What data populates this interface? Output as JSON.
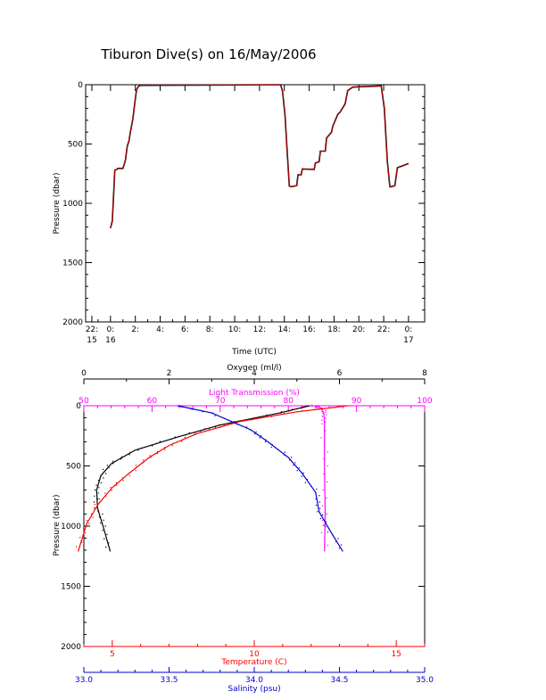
{
  "title": "Tiburon Dive(s) on 16/May/2006",
  "colors": {
    "pressure_trace": "#000000",
    "pressure_overlay": "#ff0000",
    "temperature": "#ff0000",
    "salinity": "#0000cc",
    "oxygen": "#000000",
    "light_transmission": "#ff00ff"
  },
  "chart_data": [
    {
      "type": "line",
      "ylabel": "Pressure (dbar)",
      "xlabel": "Time (UTC)",
      "ylim": [
        2000,
        0
      ],
      "xlim_hours": [
        -2,
        25.3
      ],
      "y_ticks": [
        "0",
        "500",
        "1000",
        "1500",
        "2000"
      ],
      "x_ticks": [
        {
          "hour": -1.5,
          "line1": "22:",
          "line2": "15"
        },
        {
          "hour": 0,
          "line1": "0:",
          "line2": "16"
        },
        {
          "hour": 2,
          "line1": "2:",
          "line2": ""
        },
        {
          "hour": 4,
          "line1": "4:",
          "line2": ""
        },
        {
          "hour": 6,
          "line1": "6:",
          "line2": ""
        },
        {
          "hour": 8,
          "line1": "8:",
          "line2": ""
        },
        {
          "hour": 10,
          "line1": "10:",
          "line2": ""
        },
        {
          "hour": 12,
          "line1": "12:",
          "line2": ""
        },
        {
          "hour": 14,
          "line1": "14:",
          "line2": ""
        },
        {
          "hour": 16,
          "line1": "16:",
          "line2": ""
        },
        {
          "hour": 18,
          "line1": "18:",
          "line2": ""
        },
        {
          "hour": 20,
          "line1": "20:",
          "line2": ""
        },
        {
          "hour": 22,
          "line1": "22:",
          "line2": ""
        },
        {
          "hour": 24,
          "line1": "0:",
          "line2": "17"
        }
      ],
      "series": [
        {
          "x_hours": [
            0.0,
            0.15,
            0.35,
            0.5,
            0.6,
            1.0,
            1.2,
            1.35,
            1.5,
            1.6,
            1.8,
            1.95,
            2.1,
            2.25,
            2.4,
            13.7,
            13.85,
            14.05,
            14.25,
            14.4,
            14.55,
            15.0,
            15.1,
            15.35,
            15.45,
            16.4,
            16.5,
            16.8,
            16.9,
            17.3,
            17.4,
            17.8,
            17.9,
            18.3,
            18.5,
            18.9,
            19.1,
            19.5,
            21.8,
            22.05,
            22.3,
            22.5,
            22.6,
            22.9,
            23.1,
            24.0
          ],
          "y_dbar": [
            1210,
            1150,
            720,
            715,
            705,
            705,
            640,
            520,
            470,
            400,
            290,
            160,
            40,
            15,
            5,
            0,
            50,
            250,
            600,
            855,
            860,
            850,
            760,
            760,
            710,
            715,
            660,
            650,
            560,
            560,
            450,
            400,
            350,
            250,
            230,
            160,
            50,
            20,
            10,
            200,
            650,
            860,
            860,
            850,
            700,
            665
          ]
        }
      ]
    },
    {
      "type": "scatter",
      "ylabel": "Pressure (dbar)",
      "ylim": [
        2000,
        0
      ],
      "y_ticks": [
        "0",
        "500",
        "1000",
        "1500",
        "2000"
      ],
      "axes": {
        "oxygen": {
          "label": "Oxygen (ml/l)",
          "range": [
            0,
            8
          ],
          "ticks": [
            "0",
            "2",
            "4",
            "6",
            "8"
          ]
        },
        "light_transmission": {
          "label": "Light Transmission (%)",
          "range": [
            50,
            100
          ],
          "ticks": [
            "50",
            "60",
            "70",
            "80",
            "90",
            "100"
          ]
        },
        "temperature": {
          "label": "Temperature (C)",
          "range": [
            4.0,
            16.0
          ],
          "ticks": [
            "5",
            "10",
            "15"
          ]
        },
        "salinity": {
          "label": "Salinity (psu)",
          "range": [
            33.0,
            35.0
          ],
          "ticks": [
            "33.0",
            "33.5",
            "34.0",
            "34.5",
            "35.0"
          ]
        }
      },
      "series": [
        {
          "name": "Oxygen",
          "values": [
            [
              5.3,
              0
            ],
            [
              4.6,
              60
            ],
            [
              3.2,
              160
            ],
            [
              2.2,
              260
            ],
            [
              1.2,
              370
            ],
            [
              0.65,
              480
            ],
            [
              0.4,
              580
            ],
            [
              0.3,
              700
            ],
            [
              0.32,
              850
            ],
            [
              0.45,
              1000
            ],
            [
              0.62,
              1210
            ]
          ]
        },
        {
          "name": "Light Transmission",
          "values": [
            [
              84.0,
              0
            ],
            [
              84.8,
              20
            ],
            [
              85.2,
              60
            ],
            [
              85.3,
              150
            ],
            [
              85.3,
              500
            ],
            [
              85.4,
              900
            ],
            [
              85.3,
              1210
            ]
          ]
        },
        {
          "name": "Temperature",
          "values": [
            [
              13.3,
              0
            ],
            [
              11.5,
              50
            ],
            [
              9.5,
              130
            ],
            [
              8.0,
              230
            ],
            [
              7.0,
              330
            ],
            [
              6.3,
              430
            ],
            [
              5.6,
              560
            ],
            [
              5.0,
              680
            ],
            [
              4.5,
              820
            ],
            [
              4.1,
              980
            ],
            [
              3.8,
              1210
            ]
          ]
        },
        {
          "name": "Salinity",
          "values": [
            [
              33.55,
              0
            ],
            [
              33.75,
              60
            ],
            [
              33.98,
              200
            ],
            [
              34.08,
              300
            ],
            [
              34.2,
              430
            ],
            [
              34.28,
              560
            ],
            [
              34.36,
              720
            ],
            [
              34.38,
              880
            ],
            [
              34.45,
              1050
            ],
            [
              34.52,
              1210
            ]
          ]
        }
      ]
    }
  ]
}
